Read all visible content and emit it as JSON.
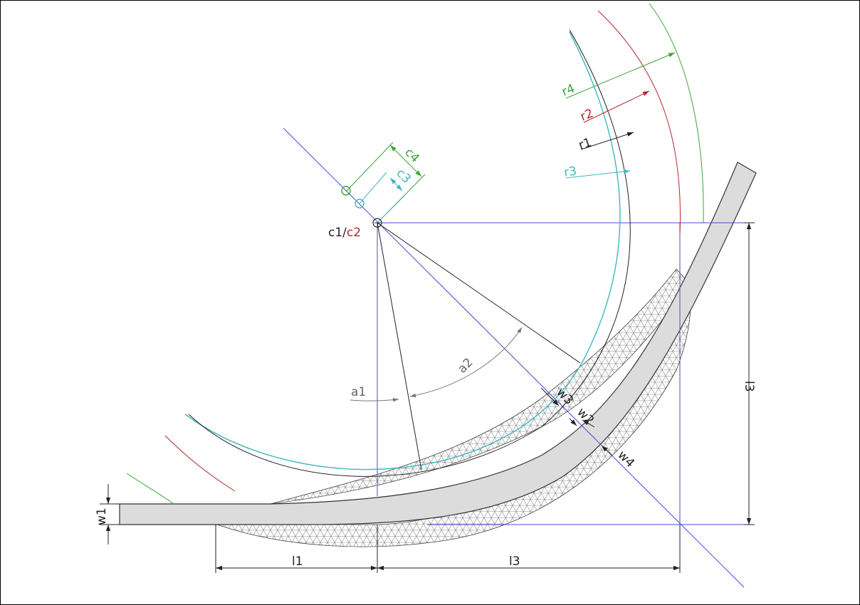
{
  "labels": {
    "r4": "r4",
    "r2": "r2",
    "r1": "r1",
    "r3": "r3",
    "c4": "c4",
    "c3": "c3",
    "c1": "c1/",
    "c2": "c2",
    "a1": "a1",
    "a2": "a2",
    "w1": "w1",
    "w2": "w2",
    "w3": "w3",
    "w4": "w4",
    "l1": "l1",
    "l3_bottom": "l3",
    "l3_right": "l3"
  },
  "colors": {
    "green": "#3aa53a",
    "red": "#b3262b",
    "cyan": "#3fb8c0",
    "blue": "#4a4ad0",
    "black": "#222222",
    "gray_label": "#666666",
    "bar_fill": "#dcdcdc",
    "hatch": "#8a8a8a"
  }
}
